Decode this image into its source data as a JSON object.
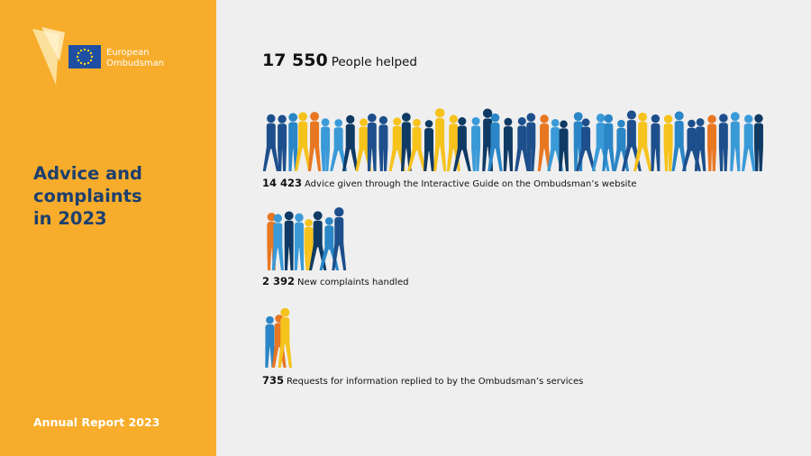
{
  "sidebar": {
    "logo": {
      "line1": "European",
      "line2": "Ombudsman"
    },
    "title": [
      "Advice and",
      "complaints",
      "in 2023"
    ],
    "footer": "Annual Report 2023"
  },
  "summary": {
    "number": "17 550",
    "label": "People helped"
  },
  "items": [
    {
      "number": "14 423",
      "label": "Advice given through the Interactive Guide on the Ombudsman’s website"
    },
    {
      "number": "2 392",
      "label": "New complaints handled"
    },
    {
      "number": "735",
      "label": "Requests for information replied to by the Ombudsman’s services"
    }
  ]
}
